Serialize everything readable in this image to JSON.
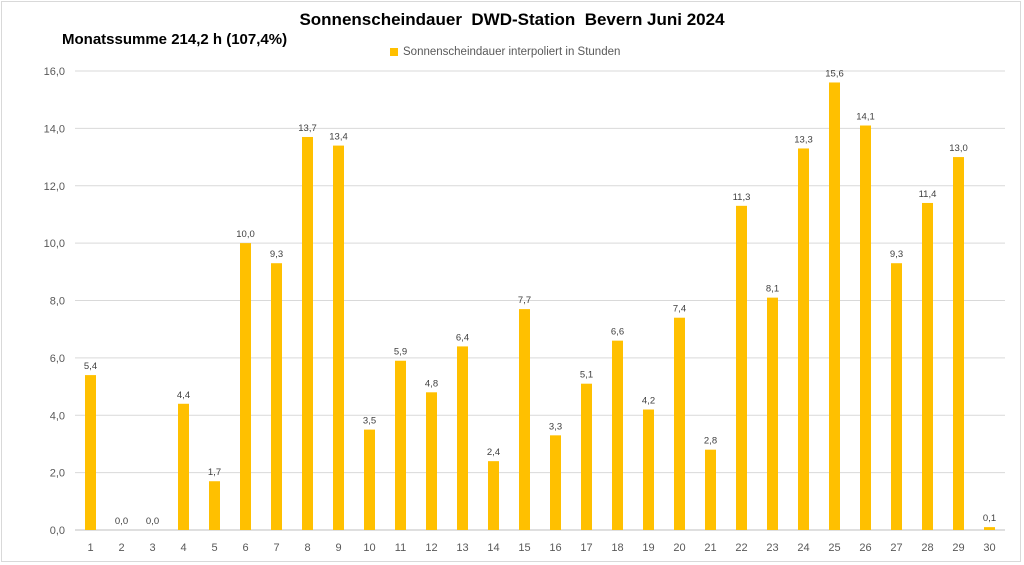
{
  "chart_data": {
    "type": "bar",
    "title": "Sonnenscheindauer  DWD-Station  Bevern Juni 2024",
    "subtitle": "Monatssumme 214,2 h (107,4%)",
    "legend": [
      "Sonnenscheindauer interpoliert in Stunden"
    ],
    "legend_position": "top-center",
    "series": [
      {
        "name": "Sonnenscheindauer interpoliert in Stunden",
        "color": "#FFC000",
        "values": [
          5.4,
          0.0,
          0.0,
          4.4,
          1.7,
          10.0,
          9.3,
          13.7,
          13.4,
          3.5,
          5.9,
          4.8,
          6.4,
          2.4,
          7.7,
          3.3,
          5.1,
          6.6,
          4.2,
          7.4,
          2.8,
          11.3,
          8.1,
          13.3,
          15.6,
          14.1,
          9.3,
          11.4,
          13.0,
          0.1
        ],
        "labels": [
          "5,4",
          "0,0",
          "0,0",
          "4,4",
          "1,7",
          "10,0",
          "9,3",
          "13,7",
          "13,4",
          "3,5",
          "5,9",
          "4,8",
          "6,4",
          "2,4",
          "7,7",
          "3,3",
          "5,1",
          "6,6",
          "4,2",
          "7,4",
          "2,8",
          "11,3",
          "8,1",
          "13,3",
          "15,6",
          "14,1",
          "9,3",
          "11,4",
          "13,0",
          "0,1"
        ]
      }
    ],
    "categories": [
      "1",
      "2",
      "3",
      "4",
      "5",
      "6",
      "7",
      "8",
      "9",
      "10",
      "11",
      "12",
      "13",
      "14",
      "15",
      "16",
      "17",
      "18",
      "19",
      "20",
      "21",
      "22",
      "23",
      "24",
      "25",
      "26",
      "27",
      "28",
      "29",
      "30"
    ],
    "yticks": [
      0,
      2,
      4,
      6,
      8,
      10,
      12,
      14,
      16
    ],
    "ytick_labels": [
      "0,0",
      "2,0",
      "4,0",
      "6,0",
      "8,0",
      "10,0",
      "12,0",
      "14,0",
      "16,0"
    ],
    "ylim": [
      0,
      16
    ],
    "xlabel": "",
    "ylabel": "",
    "grid": true
  }
}
